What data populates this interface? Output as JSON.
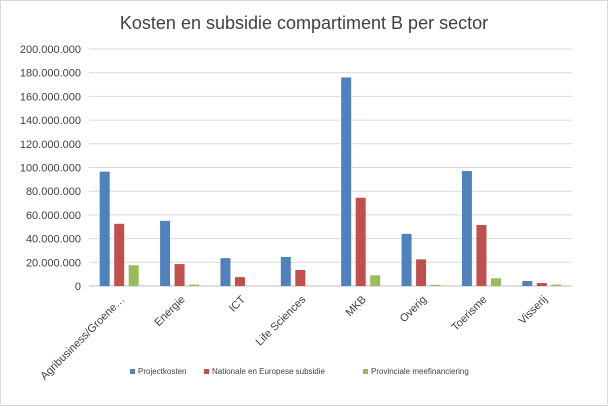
{
  "chart_data": {
    "type": "bar",
    "title": "Kosten en subsidie compartiment B per sector",
    "categories": [
      "Agribusiness/Groene…",
      "Energie",
      "ICT",
      "Life Sciences",
      "MKB",
      "Overig",
      "Toerisme",
      "Visserij"
    ],
    "series": [
      {
        "name": "Projectkosten",
        "color": "#4f81bd",
        "values": [
          96500000,
          55000000,
          23500000,
          24500000,
          176000000,
          44000000,
          97000000,
          4200000
        ]
      },
      {
        "name": "Nationale en Europese subsidie",
        "color": "#c0504d",
        "values": [
          52500000,
          18500000,
          7500000,
          13500000,
          74500000,
          22500000,
          51500000,
          2500000
        ]
      },
      {
        "name": "Provinciale meefinanciering",
        "color": "#9bbb59",
        "values": [
          17500000,
          1200000,
          0,
          0,
          9000000,
          1000000,
          6500000,
          1200000
        ]
      }
    ],
    "yticks": [
      "0",
      "20.000.000",
      "40.000.000",
      "60.000.000",
      "80.000.000",
      "100.000.000",
      "120.000.000",
      "140.000.000",
      "160.000.000",
      "180.000.000",
      "200.000.000"
    ],
    "ylim": [
      0,
      200000000
    ],
    "grid": true,
    "legend_position": "bottom"
  }
}
